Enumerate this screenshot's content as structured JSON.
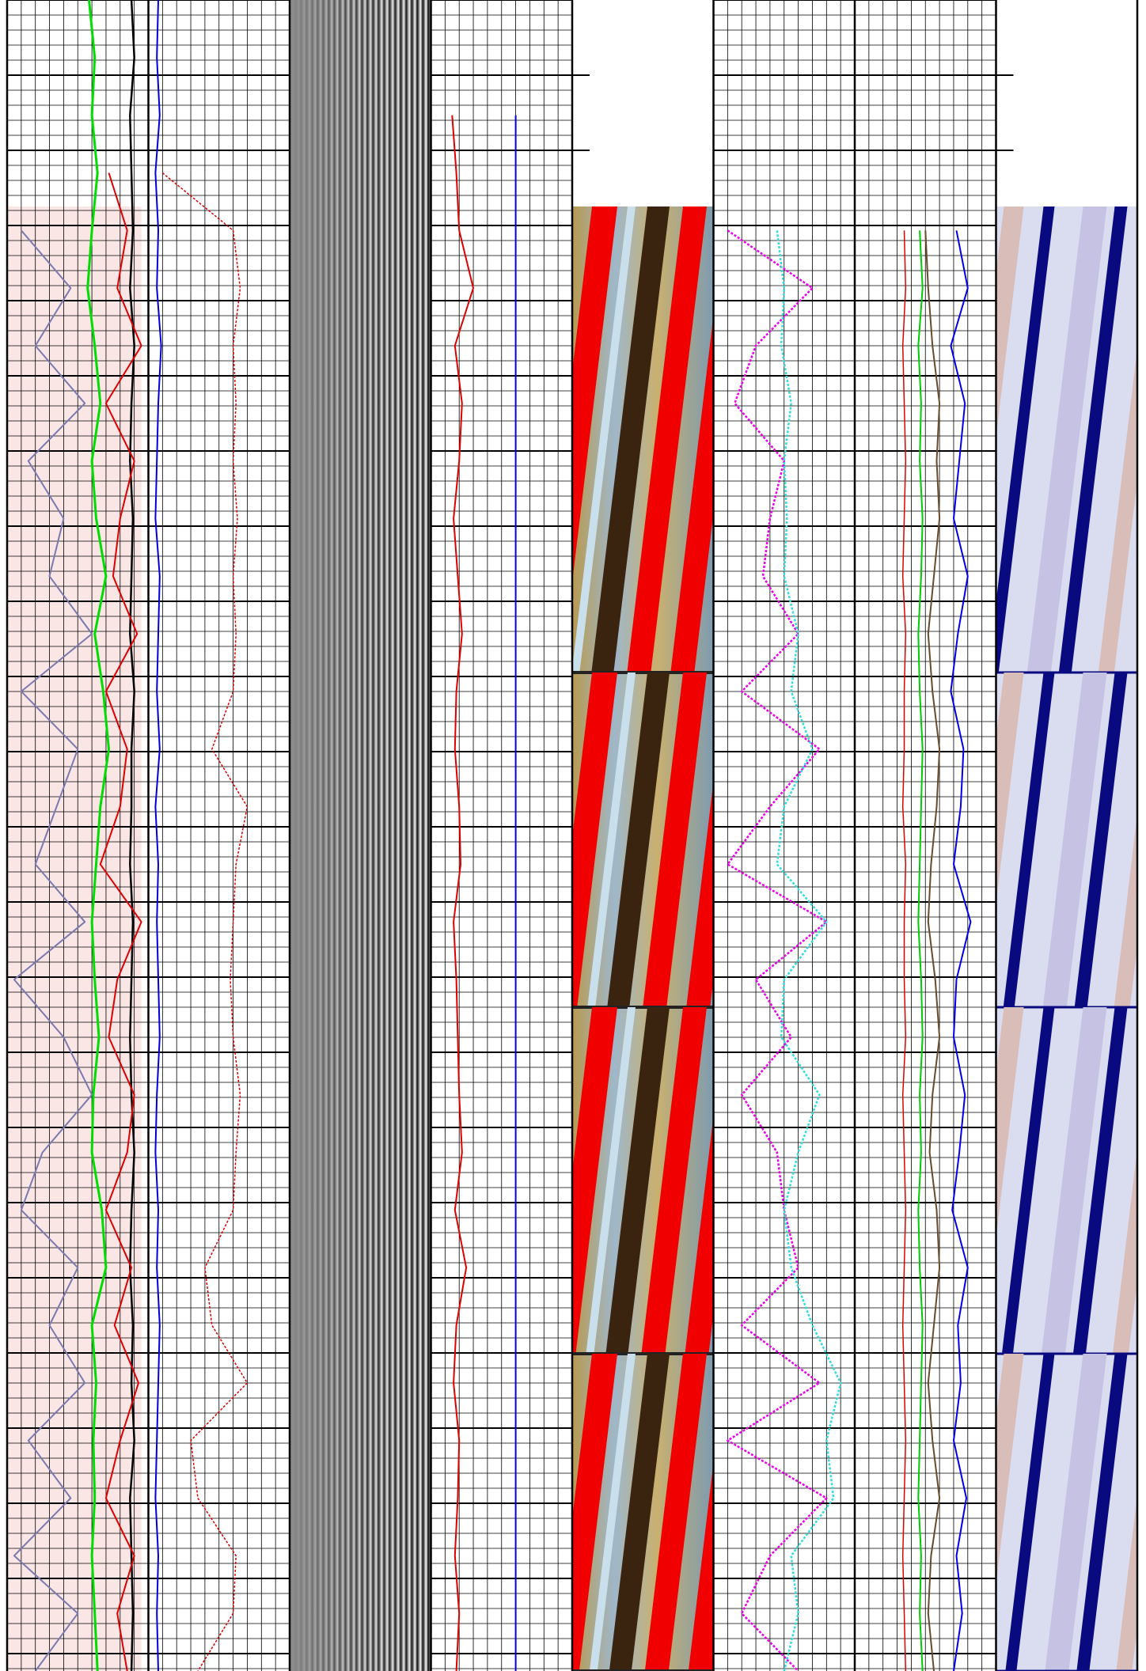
{
  "track_1": {
    "curves": [
      {
        "color": "#00dd00",
        "width": 3,
        "values": [
          0.58,
          0.62,
          0.6,
          0.64,
          0.6,
          0.57,
          0.62,
          0.66,
          0.6,
          0.63,
          0.7,
          0.62,
          0.68,
          0.72,
          0.66,
          0.63,
          0.6,
          0.62,
          0.65,
          0.61,
          0.6,
          0.67,
          0.7,
          0.6,
          0.63,
          0.61,
          0.62,
          0.6,
          0.62,
          0.64
        ]
      },
      {
        "color": "#000000",
        "width": 2.5,
        "values": [
          0.88,
          0.9,
          0.87,
          0.88,
          0.89,
          0.87,
          0.9,
          0.88,
          0.87,
          0.89,
          0.88,
          0.87,
          0.9,
          0.88,
          0.88,
          0.87,
          0.89,
          0.88,
          0.87,
          0.88,
          0.9,
          0.88,
          0.87,
          0.89,
          0.88,
          0.9,
          0.87,
          0.88,
          0.89,
          0.88
        ]
      },
      {
        "color": "#7a7ab0",
        "width": 2,
        "values": [
          null,
          null,
          null,
          null,
          0.1,
          0.45,
          0.2,
          0.55,
          0.15,
          0.4,
          0.3,
          0.6,
          0.1,
          0.5,
          0.35,
          0.2,
          0.55,
          0.05,
          0.4,
          0.6,
          0.25,
          0.1,
          0.5,
          0.3,
          0.55,
          0.15,
          0.45,
          0.05,
          0.5,
          0.2
        ]
      },
      {
        "color": "#e00000",
        "width": 2,
        "values": [
          null,
          null,
          null,
          0.72,
          0.85,
          0.78,
          0.95,
          0.7,
          0.9,
          0.8,
          0.75,
          0.92,
          0.7,
          0.85,
          0.8,
          0.66,
          0.95,
          0.78,
          0.72,
          0.9,
          0.85,
          0.7,
          0.88,
          0.76,
          0.93,
          0.8,
          0.7,
          0.9,
          0.78,
          0.85
        ]
      }
    ]
  },
  "track_2": {
    "curves": [
      {
        "color": "#0000dd",
        "width": 2,
        "values": [
          0.07,
          0.06,
          0.08,
          0.05,
          0.07,
          0.06,
          0.09,
          0.07,
          0.06,
          0.05,
          0.08,
          0.07,
          0.06,
          0.08,
          0.05,
          0.07,
          0.06,
          0.07,
          0.08,
          0.06,
          0.05,
          0.07,
          0.06,
          0.08,
          0.07,
          0.06,
          0.05,
          0.07,
          0.06,
          0.07
        ]
      },
      {
        "color": "#e00000",
        "width": 1.5,
        "style": "dotted",
        "values": [
          null,
          null,
          null,
          0.1,
          0.6,
          0.65,
          0.6,
          0.62,
          0.6,
          0.63,
          0.6,
          0.62,
          0.6,
          0.45,
          0.7,
          0.62,
          0.6,
          0.58,
          0.6,
          0.65,
          0.62,
          0.6,
          0.4,
          0.45,
          0.7,
          0.3,
          0.35,
          0.62,
          0.6,
          0.35
        ]
      }
    ]
  },
  "track_4": {
    "curves": [
      {
        "color": "#e00000",
        "width": 2,
        "values": [
          null,
          null,
          0.15,
          0.18,
          0.2,
          0.3,
          0.17,
          0.22,
          0.2,
          0.16,
          0.19,
          0.22,
          0.18,
          0.17,
          0.2,
          0.21,
          0.16,
          0.18,
          0.19,
          0.2,
          0.22,
          0.17,
          0.25,
          0.18,
          0.16,
          0.2,
          0.19,
          0.17,
          0.2,
          0.18
        ]
      },
      {
        "color": "#0000dd",
        "width": 2,
        "values": [
          null,
          null,
          0.6,
          0.6,
          0.6,
          0.6,
          0.6,
          0.6,
          0.6,
          0.6,
          0.6,
          0.6,
          0.6,
          0.6,
          0.6,
          0.6,
          0.6,
          0.6,
          0.6,
          0.6,
          0.6,
          0.6,
          0.6,
          0.6,
          0.6,
          0.6,
          0.6,
          0.6,
          0.6,
          0.6
        ]
      }
    ]
  },
  "track_6": {
    "curves": [
      {
        "color": "#ee00ee",
        "width": 2.5,
        "style": "dotted",
        "values": [
          null,
          null,
          null,
          null,
          0.1,
          0.7,
          0.3,
          0.15,
          0.5,
          0.4,
          0.35,
          0.6,
          0.2,
          0.75,
          0.4,
          0.1,
          0.8,
          0.3,
          0.55,
          0.2,
          0.45,
          0.5,
          0.6,
          0.2,
          0.75,
          0.1,
          0.8,
          0.4,
          0.2,
          0.6
        ]
      },
      {
        "color": "#33dddd",
        "width": 2.5,
        "style": "dotted",
        "values": [
          null,
          null,
          null,
          null,
          0.45,
          0.5,
          0.48,
          0.55,
          0.5,
          0.52,
          0.5,
          0.6,
          0.55,
          0.7,
          0.5,
          0.45,
          0.8,
          0.5,
          0.48,
          0.75,
          0.6,
          0.5,
          0.55,
          0.7,
          0.9,
          0.8,
          0.85,
          0.55,
          0.6,
          0.5
        ]
      }
    ]
  },
  "track_7": {
    "curves": [
      {
        "color": "#e00000",
        "width": 1.5,
        "values": [
          null,
          null,
          null,
          null,
          0.35,
          0.36,
          0.34,
          0.35,
          0.36,
          0.35,
          0.34,
          0.36,
          0.35,
          0.35,
          0.34,
          0.36,
          0.35,
          0.35,
          0.36,
          0.34,
          0.35,
          0.36,
          0.35,
          0.34,
          0.35,
          0.36,
          0.35,
          0.34,
          0.35,
          0.36
        ]
      },
      {
        "color": "#00cc00",
        "width": 2,
        "values": [
          null,
          null,
          null,
          null,
          0.46,
          0.48,
          0.45,
          0.47,
          0.46,
          0.48,
          0.47,
          0.45,
          0.46,
          0.48,
          0.47,
          0.46,
          0.45,
          0.47,
          0.48,
          0.46,
          0.47,
          0.45,
          0.46,
          0.48,
          0.47,
          0.46,
          0.45,
          0.47,
          0.46,
          0.48
        ]
      },
      {
        "color": "#6b4a2a",
        "width": 2,
        "values": [
          null,
          null,
          null,
          null,
          0.5,
          0.52,
          0.55,
          0.6,
          0.58,
          0.6,
          0.56,
          0.52,
          0.55,
          0.6,
          0.58,
          0.54,
          0.52,
          0.57,
          0.6,
          0.55,
          0.53,
          0.58,
          0.6,
          0.56,
          0.52,
          0.55,
          0.6,
          0.54,
          0.52,
          0.56
        ]
      },
      {
        "color": "#0000ee",
        "width": 2,
        "values": [
          null,
          null,
          null,
          null,
          0.72,
          0.8,
          0.68,
          0.78,
          0.74,
          0.7,
          0.8,
          0.73,
          0.68,
          0.77,
          0.75,
          0.7,
          0.82,
          0.72,
          0.7,
          0.78,
          0.74,
          0.69,
          0.8,
          0.73,
          0.75,
          0.7,
          0.79,
          0.72,
          0.76,
          0.7
        ]
      }
    ]
  }
}
